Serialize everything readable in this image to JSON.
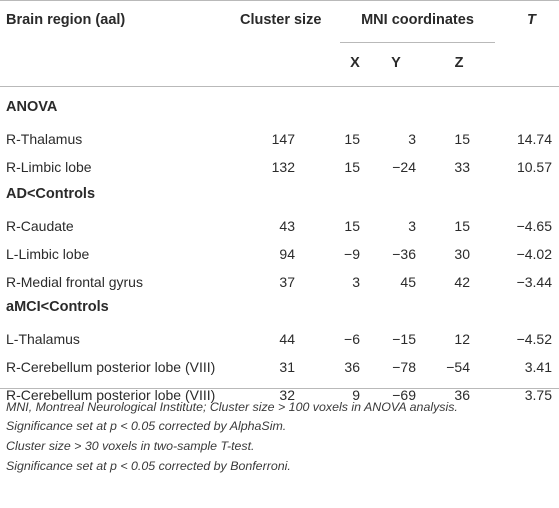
{
  "table": {
    "headers": {
      "region": "Brain region (aal)",
      "cluster": "Cluster size",
      "mni": "MNI coordinates",
      "t": "T",
      "x": "X",
      "y": "Y",
      "z": "Z"
    },
    "sections": [
      {
        "title": "ANOVA",
        "rows": [
          {
            "region": "R-Thalamus",
            "cluster": "147",
            "x": "15",
            "y": "3",
            "z": "15",
            "t": "14.74"
          },
          {
            "region": "R-Limbic lobe",
            "cluster": "132",
            "x": "15",
            "y": "−24",
            "z": "33",
            "t": "10.57"
          }
        ]
      },
      {
        "title": "AD<Controls",
        "rows": [
          {
            "region": "R-Caudate",
            "cluster": "43",
            "x": "15",
            "y": "3",
            "z": "15",
            "t": "−4.65"
          },
          {
            "region": "L-Limbic lobe",
            "cluster": "94",
            "x": "−9",
            "y": "−36",
            "z": "30",
            "t": "−4.02"
          },
          {
            "region": "R-Medial frontal gyrus",
            "cluster": "37",
            "x": "3",
            "y": "45",
            "z": "42",
            "t": "−3.44"
          }
        ]
      },
      {
        "title": "aMCI<Controls",
        "rows": [
          {
            "region": "L-Thalamus",
            "cluster": "44",
            "x": "−6",
            "y": "−15",
            "z": "12",
            "t": "−4.52"
          },
          {
            "region": "R-Cerebellum posterior lobe (VIII)",
            "cluster": "31",
            "x": "36",
            "y": "−78",
            "z": "−54",
            "t": "3.41"
          },
          {
            "region": "R-Cerebellum posterior lobe (VIII)",
            "cluster": "32",
            "x": "9",
            "y": "−69",
            "z": "36",
            "t": "3.75"
          }
        ]
      }
    ],
    "footnotes": [
      "MNI, Montreal Neurological Institute; Cluster size > 100 voxels in ANOVA analysis.",
      "Significance set at p < 0.05 corrected by AlphaSim.",
      "Cluster size > 30 voxels in two-sample T-test.",
      "Significance set at p < 0.05 corrected by Bonferroni."
    ]
  }
}
